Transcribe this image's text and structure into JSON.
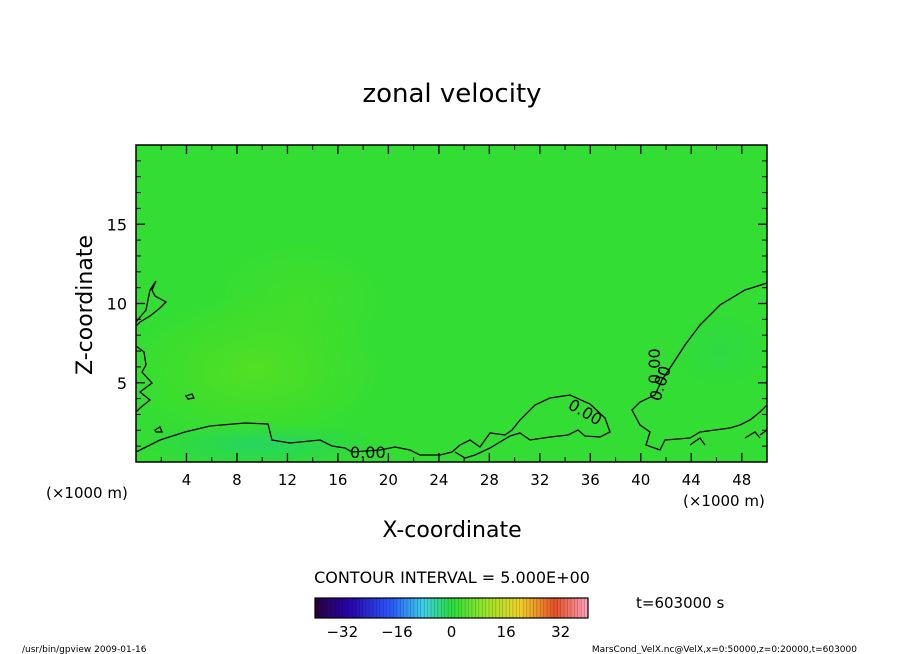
{
  "chart_data": {
    "type": "heatmap",
    "title": "zonal velocity",
    "xlabel": "X-coordinate",
    "ylabel": "Z-coordinate",
    "x_unit": "(×1000 m)",
    "y_unit": "(×1000 m)",
    "xlim": [
      0,
      50
    ],
    "ylim": [
      0,
      20
    ],
    "x_ticks": [
      "4",
      "8",
      "12",
      "16",
      "20",
      "24",
      "28",
      "32",
      "36",
      "40",
      "44",
      "48"
    ],
    "y_ticks": [
      "5",
      "10",
      "15"
    ],
    "contour_interval_text": "CONTOUR INTERVAL = 5.000E+00",
    "contour_labels": [
      "0.00",
      "0.00",
      "0.00",
      "0.00"
    ],
    "colorbar": {
      "range": [
        -40,
        40
      ],
      "ticks": [
        "−32",
        "−16",
        "0",
        "16",
        "32"
      ]
    },
    "time_text": "t=603000 s",
    "field_color": "#33dd33"
  },
  "footer": {
    "left": "/usr/bin/gpview   2009-01-16",
    "right": "MarsCond_VelX.nc@VelX,x=0:50000,z=0:20000,t=603000"
  }
}
